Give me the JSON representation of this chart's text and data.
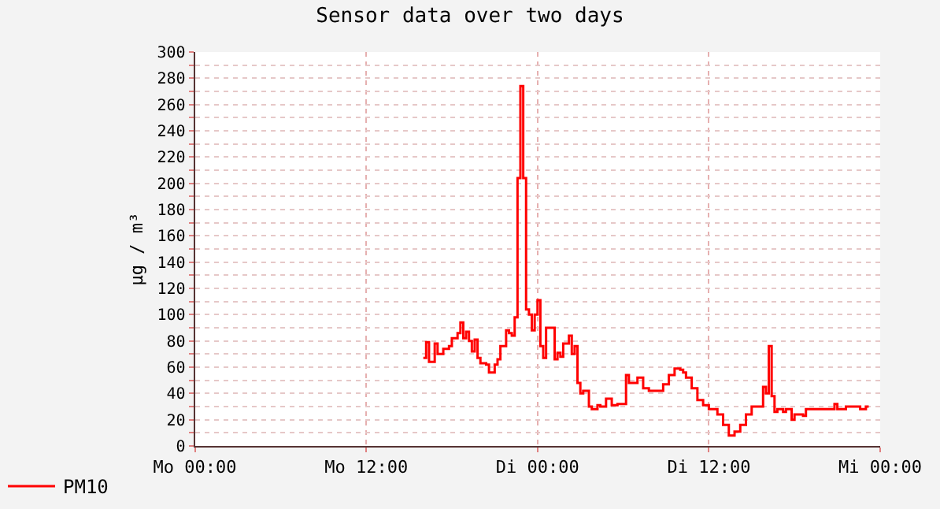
{
  "chart_data": {
    "type": "step",
    "title": "Sensor data over two days",
    "ylabel": "µg / m³",
    "ylim": [
      0,
      300
    ],
    "yticks": [
      0,
      {
        "value": 10,
        "label": null
      },
      20,
      {
        "value": 30,
        "label": null
      },
      40,
      {
        "value": 50,
        "label": null
      },
      60,
      {
        "value": 70,
        "label": null
      },
      80,
      {
        "value": 90,
        "label": null
      },
      100,
      {
        "value": 110,
        "label": null
      },
      120,
      {
        "value": 130,
        "label": null
      },
      140,
      {
        "value": 150,
        "label": null
      },
      160,
      {
        "value": 170,
        "label": null
      },
      180,
      {
        "value": 190,
        "label": null
      },
      200,
      {
        "value": 210,
        "label": null
      },
      220,
      {
        "value": 230,
        "label": null
      },
      240,
      {
        "value": 250,
        "label": null
      },
      260,
      {
        "value": 270,
        "label": null
      },
      280,
      {
        "value": 290,
        "label": null
      },
      300
    ],
    "grid": true,
    "legend": "bottom",
    "categories": [
      "Mo 00:00",
      null,
      null,
      null,
      null,
      null,
      null,
      null,
      null,
      null,
      null,
      null,
      null,
      null,
      null,
      null,
      null,
      null,
      null,
      null,
      null,
      null,
      null,
      null,
      null,
      null,
      null,
      null,
      null,
      null,
      null,
      null,
      null,
      null,
      null,
      null,
      null,
      null,
      null,
      null,
      null,
      null,
      null,
      null,
      null,
      null,
      null,
      null,
      null,
      null,
      null,
      null,
      null,
      null,
      null,
      null,
      null,
      null,
      null,
      null,
      "Mo 12:00",
      null,
      null,
      null,
      null,
      null,
      null,
      null,
      null,
      null,
      null,
      null,
      null,
      null,
      null,
      null,
      null,
      null,
      null,
      null,
      null,
      null,
      null,
      null,
      null,
      null,
      null,
      null,
      null,
      null,
      null,
      null,
      null,
      null,
      null,
      null,
      null,
      null,
      null,
      null,
      null,
      null,
      null,
      null,
      null,
      null,
      null,
      null,
      null,
      null,
      null,
      null,
      null,
      null,
      null,
      null,
      null,
      null,
      null,
      null,
      "Di 00:00",
      null,
      null,
      null,
      null,
      null,
      null,
      null,
      null,
      null,
      null,
      null,
      null,
      null,
      null,
      null,
      null,
      null,
      null,
      null,
      null,
      null,
      null,
      null,
      null,
      null,
      null,
      null,
      null,
      null,
      null,
      null,
      null,
      null,
      null,
      null,
      null,
      null,
      null,
      null,
      null,
      null,
      null,
      null,
      null,
      null,
      null,
      null,
      null,
      null,
      null,
      null,
      null,
      null,
      null,
      null,
      null,
      null,
      null,
      null,
      "Di 12:00",
      null,
      null,
      null,
      null,
      null,
      null,
      null,
      null,
      null,
      null,
      null,
      null,
      null,
      null,
      null,
      null,
      null,
      null,
      null,
      null,
      null,
      null,
      null,
      null,
      null,
      null,
      null,
      null,
      null,
      null,
      null,
      null,
      null,
      null,
      null,
      null,
      null,
      null,
      null,
      null,
      null,
      null,
      null,
      null,
      null,
      null,
      null,
      null,
      null,
      null,
      null,
      null,
      null,
      null,
      null,
      null,
      null,
      null,
      null,
      "Mi 00:00"
    ],
    "series": [
      {
        "name": "PM10",
        "color": "#ff0000",
        "values": [
          null,
          null,
          null,
          null,
          null,
          null,
          null,
          null,
          null,
          null,
          null,
          null,
          null,
          null,
          null,
          null,
          null,
          null,
          null,
          null,
          null,
          null,
          null,
          null,
          null,
          null,
          null,
          null,
          null,
          null,
          null,
          null,
          null,
          null,
          null,
          null,
          null,
          null,
          null,
          null,
          null,
          null,
          null,
          null,
          null,
          null,
          null,
          null,
          null,
          null,
          null,
          null,
          null,
          null,
          null,
          null,
          null,
          null,
          null,
          null,
          null,
          null,
          null,
          null,
          null,
          null,
          null,
          null,
          null,
          null,
          null,
          null,
          null,
          null,
          null,
          null,
          null,
          null,
          null,
          null,
          67,
          79,
          64,
          64,
          78,
          70,
          70,
          74,
          74,
          76,
          82,
          82,
          86,
          94,
          82,
          87,
          80,
          72,
          81,
          67,
          63,
          63,
          62,
          56,
          56,
          62,
          66,
          76,
          76,
          88,
          86,
          84,
          98,
          204,
          274,
          204,
          104,
          100,
          88,
          100,
          111,
          76,
          67,
          90,
          90,
          90,
          66,
          71,
          68,
          78,
          78,
          84,
          70,
          76,
          48,
          40,
          42,
          42,
          30,
          28,
          28,
          31,
          30,
          30,
          36,
          36,
          31,
          31,
          32,
          32,
          32,
          54,
          48,
          48,
          48,
          52,
          52,
          44,
          44,
          42,
          42,
          42,
          42,
          42,
          47,
          47,
          54,
          54,
          59,
          59,
          58,
          56,
          52,
          52,
          44,
          44,
          35,
          35,
          31,
          31,
          28,
          28,
          28,
          24,
          24,
          16,
          16,
          8,
          8,
          11,
          11,
          16,
          16,
          24,
          24,
          30,
          30,
          30,
          30,
          45,
          40,
          76,
          38,
          26,
          28,
          28,
          26,
          28,
          28,
          20,
          24,
          24,
          24,
          23,
          28,
          28,
          28,
          28,
          28,
          28,
          28,
          28,
          28,
          28,
          32,
          28,
          28,
          28,
          30,
          30,
          30,
          30,
          30,
          28,
          28,
          30,
          30,
          null,
          null,
          null,
          null
        ]
      }
    ]
  }
}
